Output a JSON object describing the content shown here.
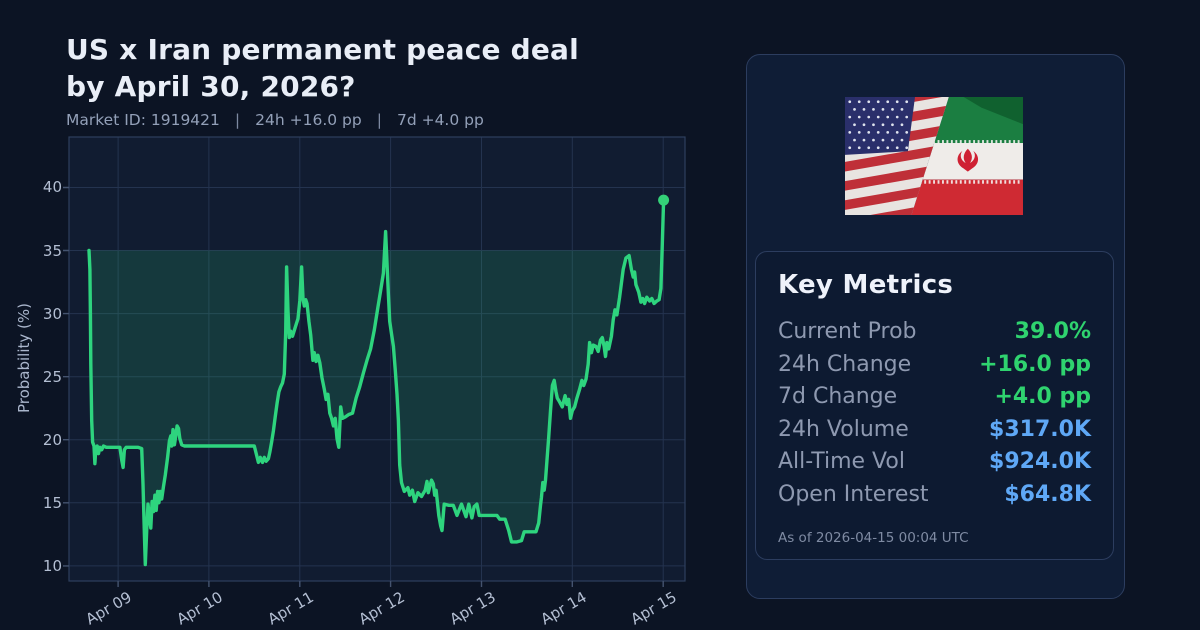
{
  "header": {
    "title_line1": "US x Iran permanent peace deal",
    "title_line2": "by April 30, 2026?",
    "subtitle": {
      "market_id": "Market ID: 1919421",
      "separator": "|",
      "change_24h": "24h +16.0 pp",
      "change_7d": "7d +4.0 pp"
    }
  },
  "chart_data": {
    "type": "line",
    "title": "",
    "xlabel": "",
    "ylabel": "Probability (%)",
    "xlim": [
      8.46,
      15.24
    ],
    "ylim": [
      8.8,
      44.0
    ],
    "yticks": [
      10,
      15,
      20,
      25,
      30,
      35,
      40
    ],
    "x_ticks": [
      {
        "day": 9,
        "label": "Apr 09"
      },
      {
        "day": 10,
        "label": "Apr 10"
      },
      {
        "day": 11,
        "label": "Apr 11"
      },
      {
        "day": 12,
        "label": "Apr 12"
      },
      {
        "day": 13,
        "label": "Apr 13"
      },
      {
        "day": 14,
        "label": "Apr 14"
      },
      {
        "day": 15,
        "label": "Apr 15"
      }
    ],
    "grid": true,
    "legend": "none",
    "fill_baseline": 35,
    "end_marker": {
      "day": 15.005,
      "value": 39.0
    },
    "series": [
      {
        "name": "Probability (%)",
        "points": [
          [
            8.68,
            35
          ],
          [
            8.69,
            33.5
          ],
          [
            8.695,
            30
          ],
          [
            8.7,
            26
          ],
          [
            8.71,
            21.5
          ],
          [
            8.72,
            19.8
          ],
          [
            8.735,
            19.5
          ],
          [
            8.745,
            18.1
          ],
          [
            8.755,
            19.3
          ],
          [
            8.77,
            19.5
          ],
          [
            8.785,
            18.9
          ],
          [
            8.8,
            19.4
          ],
          [
            8.82,
            19.2
          ],
          [
            8.84,
            19.5
          ],
          [
            8.87,
            19.4
          ],
          [
            8.9,
            19.4
          ],
          [
            8.94,
            19.4
          ],
          [
            8.98,
            19.4
          ],
          [
            9.02,
            19.4
          ],
          [
            9.04,
            18.4
          ],
          [
            9.055,
            17.8
          ],
          [
            9.07,
            19.2
          ],
          [
            9.09,
            19.4
          ],
          [
            9.13,
            19.4
          ],
          [
            9.18,
            19.4
          ],
          [
            9.22,
            19.4
          ],
          [
            9.26,
            19.3
          ],
          [
            9.275,
            16.5
          ],
          [
            9.29,
            12.5
          ],
          [
            9.3,
            10.1
          ],
          [
            9.315,
            12.8
          ],
          [
            9.33,
            14.9
          ],
          [
            9.35,
            13.6
          ],
          [
            9.36,
            13
          ],
          [
            9.375,
            15.1
          ],
          [
            9.39,
            14.3
          ],
          [
            9.405,
            15.6
          ],
          [
            9.42,
            14.4
          ],
          [
            9.435,
            15.9
          ],
          [
            9.45,
            15
          ],
          [
            9.465,
            15.9
          ],
          [
            9.48,
            15.3
          ],
          [
            9.5,
            16.3
          ],
          [
            9.52,
            17.2
          ],
          [
            9.545,
            18.6
          ],
          [
            9.565,
            19.9
          ],
          [
            9.58,
            20.3
          ],
          [
            9.59,
            19.5
          ],
          [
            9.605,
            20.8
          ],
          [
            9.62,
            19.6
          ],
          [
            9.635,
            20.3
          ],
          [
            9.65,
            21.1
          ],
          [
            9.665,
            20.9
          ],
          [
            9.68,
            20.1
          ],
          [
            9.7,
            19.6
          ],
          [
            9.73,
            19.5
          ],
          [
            9.77,
            19.5
          ],
          [
            9.82,
            19.5
          ],
          [
            9.88,
            19.5
          ],
          [
            9.95,
            19.5
          ],
          [
            10.05,
            19.5
          ],
          [
            10.15,
            19.5
          ],
          [
            10.25,
            19.5
          ],
          [
            10.35,
            19.5
          ],
          [
            10.45,
            19.5
          ],
          [
            10.5,
            19.5
          ],
          [
            10.52,
            18.9
          ],
          [
            10.545,
            18.2
          ],
          [
            10.565,
            18.6
          ],
          [
            10.59,
            18.2
          ],
          [
            10.61,
            18.6
          ],
          [
            10.63,
            18.3
          ],
          [
            10.655,
            18.5
          ],
          [
            10.67,
            19
          ],
          [
            10.69,
            19.8
          ],
          [
            10.71,
            20.7
          ],
          [
            10.73,
            21.8
          ],
          [
            10.75,
            22.9
          ],
          [
            10.77,
            23.8
          ],
          [
            10.79,
            24.2
          ],
          [
            10.81,
            24.5
          ],
          [
            10.83,
            25.2
          ],
          [
            10.845,
            28.5
          ],
          [
            10.855,
            33.7
          ],
          [
            10.87,
            30.2
          ],
          [
            10.885,
            28.1
          ],
          [
            10.9,
            28.6
          ],
          [
            10.92,
            28.2
          ],
          [
            10.95,
            28.9
          ],
          [
            10.98,
            29.6
          ],
          [
            11,
            31
          ],
          [
            11.02,
            33.7
          ],
          [
            11.035,
            31.2
          ],
          [
            11.05,
            30.6
          ],
          [
            11.065,
            31.1
          ],
          [
            11.08,
            30.8
          ],
          [
            11.1,
            29.4
          ],
          [
            11.12,
            28.3
          ],
          [
            11.145,
            26.3
          ],
          [
            11.16,
            26.9
          ],
          [
            11.18,
            26.2
          ],
          [
            11.2,
            26.7
          ],
          [
            11.22,
            26.1
          ],
          [
            11.245,
            24.9
          ],
          [
            11.27,
            24
          ],
          [
            11.29,
            23.2
          ],
          [
            11.31,
            23.6
          ],
          [
            11.33,
            22.1
          ],
          [
            11.35,
            21.7
          ],
          [
            11.37,
            21.1
          ],
          [
            11.39,
            21.7
          ],
          [
            11.41,
            20.1
          ],
          [
            11.43,
            19.4
          ],
          [
            11.45,
            22.6
          ],
          [
            11.47,
            21.7
          ],
          [
            11.5,
            21.8
          ],
          [
            11.54,
            22
          ],
          [
            11.58,
            22.1
          ],
          [
            11.62,
            23.3
          ],
          [
            11.66,
            24.2
          ],
          [
            11.7,
            25.3
          ],
          [
            11.74,
            26.3
          ],
          [
            11.78,
            27.2
          ],
          [
            11.82,
            28.7
          ],
          [
            11.86,
            30.5
          ],
          [
            11.89,
            31.8
          ],
          [
            11.92,
            33.2
          ],
          [
            11.945,
            36.5
          ],
          [
            11.96,
            34
          ],
          [
            11.975,
            31.5
          ],
          [
            11.99,
            29.4
          ],
          [
            12.01,
            28.4
          ],
          [
            12.03,
            27.4
          ],
          [
            12.05,
            25.6
          ],
          [
            12.07,
            23.6
          ],
          [
            12.085,
            21.5
          ],
          [
            12.1,
            18
          ],
          [
            12.12,
            16.6
          ],
          [
            12.15,
            15.9
          ],
          [
            12.19,
            16.2
          ],
          [
            12.21,
            15.6
          ],
          [
            12.24,
            16
          ],
          [
            12.265,
            15.1
          ],
          [
            12.3,
            15.8
          ],
          [
            12.34,
            15.5
          ],
          [
            12.38,
            16
          ],
          [
            12.4,
            16.7
          ],
          [
            12.415,
            15.8
          ],
          [
            12.45,
            16.8
          ],
          [
            12.47,
            16.5
          ],
          [
            12.485,
            15.6
          ],
          [
            12.5,
            16
          ],
          [
            12.53,
            14
          ],
          [
            12.55,
            13.2
          ],
          [
            12.565,
            12.8
          ],
          [
            12.59,
            14.9
          ],
          [
            12.64,
            14.8
          ],
          [
            12.69,
            14.8
          ],
          [
            12.73,
            14
          ],
          [
            12.78,
            14.9
          ],
          [
            12.83,
            13.9
          ],
          [
            12.86,
            14.9
          ],
          [
            12.895,
            13.8
          ],
          [
            12.92,
            14.7
          ],
          [
            12.95,
            14.9
          ],
          [
            12.975,
            14
          ],
          [
            13.03,
            14
          ],
          [
            13.1,
            14
          ],
          [
            13.17,
            14
          ],
          [
            13.2,
            13.7
          ],
          [
            13.26,
            13.7
          ],
          [
            13.3,
            12.8
          ],
          [
            13.33,
            11.9
          ],
          [
            13.39,
            11.9
          ],
          [
            13.44,
            12
          ],
          [
            13.47,
            12.7
          ],
          [
            13.53,
            12.7
          ],
          [
            13.6,
            12.7
          ],
          [
            13.63,
            13.4
          ],
          [
            13.65,
            14.8
          ],
          [
            13.66,
            15.4
          ],
          [
            13.675,
            16.6
          ],
          [
            13.69,
            16
          ],
          [
            13.705,
            16.8
          ],
          [
            13.72,
            18.3
          ],
          [
            13.74,
            20.2
          ],
          [
            13.76,
            22.3
          ],
          [
            13.78,
            24.3
          ],
          [
            13.8,
            24.7
          ],
          [
            13.82,
            23.8
          ],
          [
            13.835,
            23.3
          ],
          [
            13.86,
            23
          ],
          [
            13.89,
            22.6
          ],
          [
            13.92,
            23.5
          ],
          [
            13.94,
            22.8
          ],
          [
            13.96,
            23.2
          ],
          [
            13.98,
            21.7
          ],
          [
            14,
            22.3
          ],
          [
            14.025,
            22.6
          ],
          [
            14.05,
            23.3
          ],
          [
            14.08,
            24
          ],
          [
            14.105,
            24.7
          ],
          [
            14.125,
            24.3
          ],
          [
            14.15,
            24.8
          ],
          [
            14.175,
            26
          ],
          [
            14.19,
            27.7
          ],
          [
            14.21,
            26.9
          ],
          [
            14.23,
            27.5
          ],
          [
            14.26,
            27.4
          ],
          [
            14.285,
            27
          ],
          [
            14.31,
            27.9
          ],
          [
            14.33,
            28.1
          ],
          [
            14.35,
            27.4
          ],
          [
            14.365,
            26.6
          ],
          [
            14.38,
            27.7
          ],
          [
            14.4,
            27.2
          ],
          [
            14.43,
            28.2
          ],
          [
            14.45,
            29.5
          ],
          [
            14.47,
            30.3
          ],
          [
            14.49,
            29.9
          ],
          [
            14.52,
            31.3
          ],
          [
            14.56,
            33.5
          ],
          [
            14.59,
            34.4
          ],
          [
            14.625,
            34.6
          ],
          [
            14.65,
            33.5
          ],
          [
            14.67,
            32.9
          ],
          [
            14.685,
            33.3
          ],
          [
            14.7,
            32.3
          ],
          [
            14.73,
            31.7
          ],
          [
            14.755,
            30.9
          ],
          [
            14.775,
            31.2
          ],
          [
            14.795,
            30.8
          ],
          [
            14.82,
            31.3
          ],
          [
            14.85,
            31
          ],
          [
            14.875,
            31.2
          ],
          [
            14.9,
            30.8
          ],
          [
            14.93,
            31
          ],
          [
            14.955,
            31.1
          ],
          [
            14.975,
            32
          ],
          [
            14.99,
            35.5
          ],
          [
            15.005,
            39
          ]
        ]
      }
    ]
  },
  "theme": {
    "background": "#0c1424",
    "plot_background": "#111c31",
    "grid_color": "#24334f",
    "line_color": "#2ed47e",
    "fill_color": "rgba(46,212,126,0.16)",
    "green_value": "#2fd36f",
    "blue_value": "#5fa8f6",
    "label_gray": "#8e99b0",
    "tick_gray": "#b4bfd3"
  },
  "flags": {
    "left": "us-flag",
    "right": "iran-flag"
  },
  "metrics": {
    "title": "Key Metrics",
    "rows": [
      {
        "label": "Current Prob",
        "value": "39.0%",
        "color": "green"
      },
      {
        "label": "24h Change",
        "value": "+16.0 pp",
        "color": "green"
      },
      {
        "label": "7d Change",
        "value": "+4.0 pp",
        "color": "green"
      },
      {
        "label": "24h Volume",
        "value": "$317.0K",
        "color": "blue"
      },
      {
        "label": "All-Time Vol",
        "value": "$924.0K",
        "color": "blue"
      },
      {
        "label": "Open Interest",
        "value": "$64.8K",
        "color": "blue"
      }
    ],
    "footer": "As of 2026-04-15 00:04 UTC"
  }
}
